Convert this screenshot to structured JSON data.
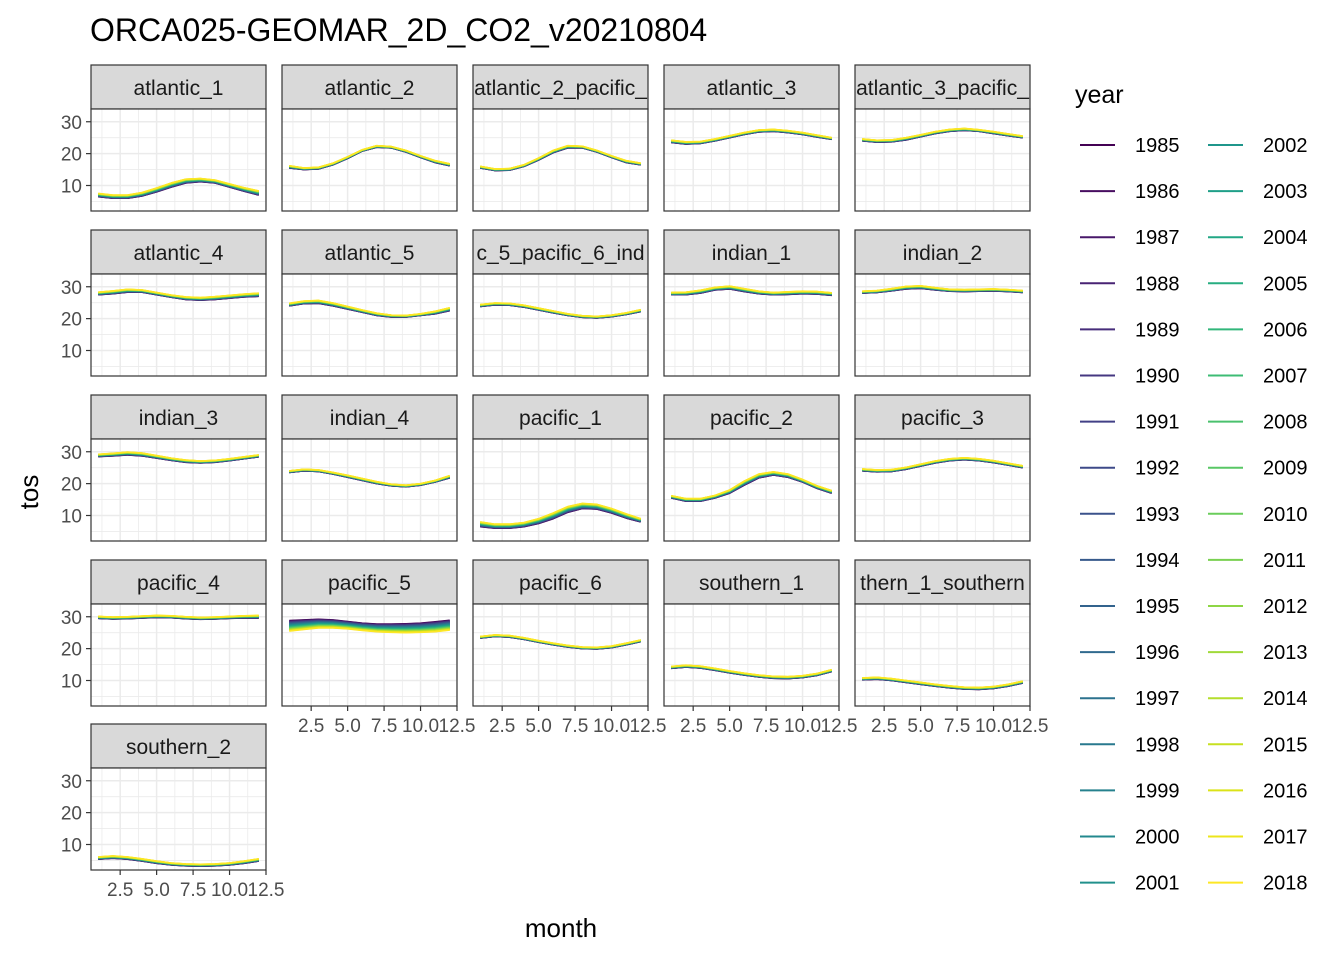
{
  "chart_data": {
    "type": "line",
    "title": "ORCA025-GEOMAR_2D_CO2_v20210804",
    "xlabel": "month",
    "ylabel": "tos",
    "legend_title": "year",
    "legend_position": "right",
    "xlim": [
      0.5,
      12.5
    ],
    "ylim": [
      2,
      34
    ],
    "x_ticks": [
      2.5,
      5.0,
      7.5,
      10.0,
      12.5
    ],
    "x_tick_labels": [
      "2.5",
      "5.0",
      "7.5",
      "10.0",
      "12.5"
    ],
    "y_ticks": [
      10,
      20,
      30
    ],
    "y_tick_labels": [
      "10",
      "20",
      "30"
    ],
    "grid": true,
    "x": [
      1,
      2,
      3,
      4,
      5,
      6,
      7,
      8,
      9,
      10,
      11,
      12
    ],
    "years": [
      "1985",
      "1986",
      "1987",
      "1988",
      "1989",
      "1990",
      "1991",
      "1992",
      "1993",
      "1994",
      "1995",
      "1996",
      "1997",
      "1998",
      "1999",
      "2000",
      "2001",
      "2002",
      "2003",
      "2004",
      "2005",
      "2006",
      "2007",
      "2008",
      "2009",
      "2010",
      "2011",
      "2012",
      "2013",
      "2014",
      "2015",
      "2016",
      "2017",
      "2018"
    ],
    "panels": [
      {
        "label": "atlantic_1",
        "first": [
          6.5,
          6.0,
          6.0,
          6.7,
          8.0,
          9.5,
          10.8,
          11.2,
          10.8,
          9.5,
          8.2,
          7.0
        ],
        "last": [
          7.5,
          7.0,
          7.0,
          7.8,
          9.2,
          10.8,
          12.0,
          12.2,
          11.7,
          10.5,
          9.3,
          8.3
        ]
      },
      {
        "label": "atlantic_2",
        "first": [
          15.5,
          15.0,
          15.2,
          16.5,
          18.5,
          20.8,
          22.0,
          21.8,
          20.5,
          18.8,
          17.2,
          16.2
        ],
        "last": [
          16.2,
          15.5,
          15.7,
          17.0,
          19.0,
          21.2,
          22.5,
          22.2,
          21.0,
          19.3,
          17.8,
          16.8
        ]
      },
      {
        "label": "atlantic_2_pacific_",
        "first": [
          15.5,
          14.7,
          14.8,
          16.0,
          18.0,
          20.3,
          21.8,
          21.8,
          20.5,
          18.8,
          17.2,
          16.5
        ],
        "last": [
          16.0,
          15.2,
          15.3,
          16.5,
          18.6,
          21.0,
          22.5,
          22.3,
          21.0,
          19.3,
          17.8,
          17.0
        ]
      },
      {
        "label": "atlantic_3",
        "first": [
          23.5,
          23.0,
          23.2,
          24.0,
          25.0,
          26.0,
          26.8,
          27.0,
          26.6,
          26.0,
          25.2,
          24.5
        ],
        "last": [
          24.2,
          23.7,
          23.8,
          24.6,
          25.6,
          26.6,
          27.4,
          27.6,
          27.2,
          26.6,
          25.8,
          25.0
        ]
      },
      {
        "label": "atlantic_3_pacific_",
        "first": [
          24.0,
          23.6,
          23.7,
          24.3,
          25.3,
          26.3,
          27.0,
          27.3,
          27.0,
          26.3,
          25.6,
          25.0
        ],
        "last": [
          24.6,
          24.2,
          24.3,
          25.0,
          25.9,
          26.9,
          27.6,
          27.9,
          27.5,
          26.9,
          26.2,
          25.5
        ]
      },
      {
        "label": "atlantic_4",
        "first": [
          27.5,
          27.8,
          28.3,
          28.3,
          27.5,
          26.7,
          26.0,
          25.8,
          26.0,
          26.4,
          26.8,
          27.0
        ],
        "last": [
          28.3,
          28.7,
          29.2,
          29.0,
          28.2,
          27.4,
          26.8,
          26.6,
          26.9,
          27.3,
          27.7,
          28.0
        ]
      },
      {
        "label": "atlantic_5",
        "first": [
          24.0,
          24.7,
          24.8,
          24.0,
          23.0,
          22.0,
          21.0,
          20.5,
          20.5,
          21.0,
          21.5,
          22.5
        ],
        "last": [
          24.8,
          25.5,
          25.7,
          24.9,
          23.8,
          22.7,
          21.7,
          21.1,
          21.0,
          21.5,
          22.3,
          23.4
        ]
      },
      {
        "label": "c_5_pacific_6_ind",
        "first": [
          23.8,
          24.3,
          24.2,
          23.6,
          22.7,
          21.8,
          21.0,
          20.4,
          20.2,
          20.6,
          21.3,
          22.2
        ],
        "last": [
          24.4,
          24.9,
          24.8,
          24.2,
          23.3,
          22.4,
          21.5,
          20.9,
          20.7,
          21.1,
          21.8,
          22.8
        ]
      },
      {
        "label": "indian_1",
        "first": [
          27.5,
          27.5,
          28.0,
          29.0,
          29.3,
          28.5,
          27.8,
          27.5,
          27.6,
          27.8,
          27.7,
          27.3
        ],
        "last": [
          28.2,
          28.3,
          28.9,
          29.8,
          30.2,
          29.4,
          28.6,
          28.2,
          28.4,
          28.6,
          28.5,
          28.1
        ]
      },
      {
        "label": "indian_2",
        "first": [
          28.0,
          28.2,
          28.7,
          29.3,
          29.5,
          29.0,
          28.6,
          28.5,
          28.6,
          28.7,
          28.5,
          28.2
        ],
        "last": [
          28.6,
          28.8,
          29.4,
          30.1,
          30.3,
          29.7,
          29.2,
          29.1,
          29.2,
          29.3,
          29.1,
          28.8
        ]
      },
      {
        "label": "indian_3",
        "first": [
          28.5,
          28.7,
          29.0,
          28.7,
          28.0,
          27.3,
          26.7,
          26.5,
          26.7,
          27.2,
          27.8,
          28.4
        ],
        "last": [
          29.2,
          29.5,
          29.9,
          29.6,
          28.8,
          28.0,
          27.4,
          27.1,
          27.3,
          27.8,
          28.4,
          29.0
        ]
      },
      {
        "label": "indian_4",
        "first": [
          23.5,
          24.0,
          23.8,
          23.0,
          22.0,
          21.0,
          20.0,
          19.3,
          19.0,
          19.5,
          20.5,
          21.8
        ],
        "last": [
          24.0,
          24.5,
          24.3,
          23.5,
          22.6,
          21.6,
          20.6,
          19.8,
          19.5,
          20.0,
          21.0,
          22.5
        ]
      },
      {
        "label": "pacific_1",
        "first": [
          6.5,
          6.0,
          6.0,
          6.5,
          7.5,
          9.0,
          11.0,
          12.2,
          12.0,
          10.8,
          9.2,
          8.0
        ],
        "last": [
          8.0,
          7.3,
          7.3,
          7.8,
          9.0,
          10.8,
          12.8,
          13.8,
          13.5,
          12.2,
          10.5,
          9.0
        ]
      },
      {
        "label": "pacific_2",
        "first": [
          15.5,
          14.5,
          14.5,
          15.5,
          17.0,
          19.5,
          21.8,
          22.7,
          22.0,
          20.5,
          18.5,
          17.0
        ],
        "last": [
          16.2,
          15.3,
          15.3,
          16.3,
          18.0,
          20.8,
          23.0,
          23.7,
          23.0,
          21.3,
          19.3,
          17.8
        ]
      },
      {
        "label": "pacific_3",
        "first": [
          24.0,
          23.7,
          23.8,
          24.5,
          25.5,
          26.5,
          27.2,
          27.5,
          27.2,
          26.6,
          25.8,
          25.0
        ],
        "last": [
          24.6,
          24.3,
          24.4,
          25.1,
          26.1,
          27.1,
          27.8,
          28.1,
          27.8,
          27.2,
          26.4,
          25.6
        ]
      },
      {
        "label": "pacific_4",
        "first": [
          29.5,
          29.3,
          29.4,
          29.6,
          29.8,
          29.7,
          29.4,
          29.2,
          29.3,
          29.5,
          29.6,
          29.6
        ],
        "last": [
          30.1,
          29.9,
          30.0,
          30.2,
          30.4,
          30.3,
          30.0,
          29.8,
          29.9,
          30.1,
          30.3,
          30.4
        ]
      },
      {
        "label": "pacific_5",
        "first": [
          28.8,
          29.0,
          29.2,
          29.0,
          28.5,
          28.0,
          27.7,
          27.7,
          27.8,
          28.0,
          28.4,
          28.9
        ],
        "last": [
          25.5,
          26.0,
          26.5,
          26.5,
          26.2,
          25.7,
          25.3,
          25.1,
          25.0,
          25.1,
          25.3,
          25.8
        ]
      },
      {
        "label": "pacific_6",
        "first": [
          23.3,
          23.8,
          23.6,
          22.9,
          22.0,
          21.2,
          20.5,
          20.0,
          19.9,
          20.3,
          21.2,
          22.2
        ],
        "last": [
          23.8,
          24.3,
          24.1,
          23.4,
          22.5,
          21.7,
          21.0,
          20.5,
          20.4,
          20.8,
          21.7,
          22.7
        ]
      },
      {
        "label": "southern_1",
        "first": [
          13.8,
          14.2,
          13.9,
          13.2,
          12.4,
          11.7,
          11.1,
          10.7,
          10.6,
          10.9,
          11.6,
          12.8
        ],
        "last": [
          14.4,
          14.8,
          14.5,
          13.8,
          13.0,
          12.3,
          11.7,
          11.3,
          11.2,
          11.5,
          12.2,
          13.4
        ]
      },
      {
        "label": "thern_1_southern",
        "first": [
          10.2,
          10.4,
          10.0,
          9.4,
          8.8,
          8.2,
          7.7,
          7.3,
          7.2,
          7.5,
          8.2,
          9.2
        ],
        "last": [
          10.8,
          11.0,
          10.6,
          10.0,
          9.4,
          8.8,
          8.3,
          7.9,
          7.8,
          8.1,
          8.8,
          9.8
        ]
      },
      {
        "label": "southern_2",
        "first": [
          5.4,
          5.7,
          5.4,
          4.8,
          4.1,
          3.6,
          3.3,
          3.2,
          3.3,
          3.6,
          4.1,
          4.8
        ],
        "last": [
          6.1,
          6.4,
          6.1,
          5.5,
          4.8,
          4.2,
          3.9,
          3.8,
          3.9,
          4.2,
          4.8,
          5.5
        ]
      }
    ],
    "palette": [
      "#440154",
      "#470D60",
      "#48186A",
      "#482374",
      "#472D7B",
      "#453781",
      "#424086",
      "#3E4A89",
      "#3B528B",
      "#375A8C",
      "#33638D",
      "#306A8E",
      "#2C728E",
      "#29798E",
      "#26818E",
      "#23888E",
      "#21908C",
      "#1F968B",
      "#1F9F88",
      "#22A785",
      "#27AD81",
      "#32B67A",
      "#3DBC74",
      "#4AC16D",
      "#58C765",
      "#6ACD5B",
      "#7AD151",
      "#8ED645",
      "#A0DA39",
      "#B4DE2C",
      "#C7E020",
      "#DBE318",
      "#ECE51B",
      "#FDE725"
    ]
  }
}
